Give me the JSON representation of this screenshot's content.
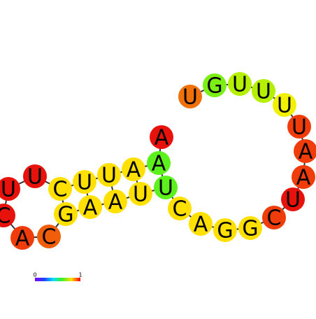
{
  "nodes": [
    {
      "label": "A",
      "color": "#e8120c"
    },
    {
      "label": "A",
      "color": "#5cf01c"
    },
    {
      "label": "A",
      "color": "#ffe000"
    },
    {
      "label": "U",
      "color": "#ffe000"
    },
    {
      "label": "U",
      "color": "#ffe000"
    },
    {
      "label": "C",
      "color": "#ffe000"
    },
    {
      "label": "U",
      "color": "#e8120c"
    },
    {
      "label": "U",
      "color": "#e8120c"
    },
    {
      "label": "C",
      "color": "#e8120c"
    },
    {
      "label": "A",
      "color": "#f03c0a"
    },
    {
      "label": "C",
      "color": "#f05e0a"
    },
    {
      "label": "G",
      "color": "#ffe000"
    },
    {
      "label": "A",
      "color": "#ffe000"
    },
    {
      "label": "A",
      "color": "#ffe000"
    },
    {
      "label": "U",
      "color": "#ffe000"
    },
    {
      "label": "U",
      "color": "#5cf01c"
    },
    {
      "label": "C",
      "color": "#ffe000"
    },
    {
      "label": "A",
      "color": "#ffe000"
    },
    {
      "label": "G",
      "color": "#ffe000"
    },
    {
      "label": "G",
      "color": "#ffe000"
    },
    {
      "label": "C",
      "color": "#f03c0a"
    },
    {
      "label": "U",
      "color": "#e8120c"
    },
    {
      "label": "A",
      "color": "#f03c0a"
    },
    {
      "label": "A",
      "color": "#f03c0a"
    },
    {
      "label": "U",
      "color": "#f03c0a"
    },
    {
      "label": "U",
      "color": "#f0f000"
    },
    {
      "label": "U",
      "color": "#b4f000"
    },
    {
      "label": "U",
      "color": "#b4f000"
    },
    {
      "label": "G",
      "color": "#7cf014"
    },
    {
      "label": "U",
      "color": "#f0700a"
    }
  ],
  "colorbar": {
    "min_label": "0",
    "max_label": "1"
  }
}
